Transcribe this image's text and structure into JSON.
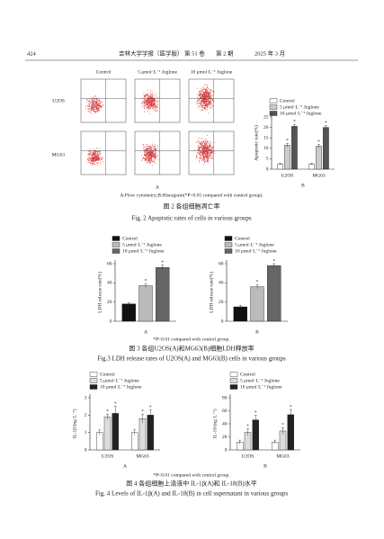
{
  "header": {
    "page": "424",
    "journal": "吉林大学学报（医学版）",
    "volume": "第 51 卷",
    "issue": "第 2 期",
    "date": "2025 年 3 月"
  },
  "figure2": {
    "columns": [
      "Control",
      "5 μmol·L⁻¹ Juglone",
      "10 μmol·L⁻¹ Juglone"
    ],
    "rows": [
      "U2OS",
      "MG63"
    ],
    "panel_a": "A",
    "note": "A:Flow cytometry;B:Histogram(*P<0.05 compared with control group).",
    "caption_cn": "图 2  各组细胞凋亡率",
    "caption_en": "Fig. 2  Apoptotic rates of cells in various groups"
  },
  "figure3": {
    "note": "*P<0.01 compared with control group.",
    "caption_cn": "图 3  各组U2OS(A)和MG63(B)细胞LDH释放率",
    "caption_en": "Fig.3  LDH release rates of U2OS(A) and MG63(B) cells in various groups"
  },
  "figure4": {
    "note": "*P<0.01 compared with control group.",
    "caption_cn": "图 4  各组细胞上清液中 IL-1β(A)和 IL-18(B)水平",
    "caption_en": "Fig. 4  Levels of IL-1β(A) and IL-18(B) in cell supernatant in various groups"
  },
  "chart_data": [
    {
      "type": "bar",
      "panel": "B",
      "ylabel": "Apoptotic rate(%)",
      "categories": [
        "U2OS",
        "MG63"
      ],
      "ylim": [
        0,
        25
      ],
      "yticks": [
        0,
        5,
        10,
        15,
        20,
        25
      ],
      "series": [
        {
          "name": "Control",
          "color": "#ffffff",
          "values": [
            2.5,
            2.5
          ],
          "errors": [
            0.4,
            0.4
          ]
        },
        {
          "name": "5 μmol·L⁻¹ Juglone",
          "color": "#cccccc",
          "values": [
            11.5,
            11
          ],
          "errors": [
            0.8,
            0.8
          ],
          "marker": "*"
        },
        {
          "name": "10 μmol·L⁻¹ Juglone",
          "color": "#555555",
          "values": [
            20.5,
            20
          ],
          "errors": [
            1,
            0.8
          ],
          "marker": "*"
        }
      ]
    },
    {
      "type": "bar",
      "panel": "A",
      "ylabel": "LDH release rate(%)",
      "categories": [
        null
      ],
      "ylim": [
        0,
        60
      ],
      "yticks": [
        0,
        20,
        40,
        60
      ],
      "series": [
        {
          "name": "Control",
          "color": "#111111",
          "values": [
            18
          ],
          "errors": [
            1.5
          ]
        },
        {
          "name": "5 μmol·L⁻¹ Juglone",
          "color": "#bbbbbb",
          "values": [
            37
          ],
          "errors": [
            2
          ],
          "marker": "*"
        },
        {
          "name": "10 μmol·L⁻¹ Juglone",
          "color": "#666666",
          "values": [
            56
          ],
          "errors": [
            2.5
          ],
          "marker": "*"
        }
      ]
    },
    {
      "type": "bar",
      "panel": "B",
      "ylabel": "LDH release rate(%)",
      "categories": [
        null
      ],
      "ylim": [
        0,
        60
      ],
      "yticks": [
        0,
        20,
        40,
        60
      ],
      "series": [
        {
          "name": "Control",
          "color": "#111111",
          "values": [
            15
          ],
          "errors": [
            1.5
          ]
        },
        {
          "name": "5 μmol·L⁻¹ Juglone",
          "color": "#bbbbbb",
          "values": [
            36
          ],
          "errors": [
            2
          ],
          "marker": "*"
        },
        {
          "name": "10 μmol·L⁻¹ Juglone",
          "color": "#666666",
          "values": [
            58
          ],
          "errors": [
            2
          ],
          "marker": "*"
        }
      ]
    },
    {
      "type": "bar",
      "panel": "A",
      "ylabel": "IL-1β/(ng·L⁻¹)",
      "categories": [
        "U2OS",
        "MG63"
      ],
      "ylim": [
        0,
        3
      ],
      "yticks": [
        0,
        1,
        2,
        3
      ],
      "series": [
        {
          "name": "Control",
          "color": "#ffffff",
          "values": [
            1.0,
            1.0
          ],
          "errors": [
            0.15,
            0.15
          ]
        },
        {
          "name": "5 μmol·L⁻¹ Juglone",
          "color": "#dddddd",
          "values": [
            1.9,
            1.8
          ],
          "errors": [
            0.15,
            0.25
          ],
          "marker": "*"
        },
        {
          "name": "10 μmol·L⁻¹ Juglone",
          "color": "#222222",
          "values": [
            2.1,
            2.0
          ],
          "errors": [
            0.4,
            0.3
          ],
          "marker": "*"
        }
      ]
    },
    {
      "type": "bar",
      "panel": "B",
      "ylabel": "IL-18/(ng·L⁻¹)",
      "categories": [
        "U2OS",
        "MG63"
      ],
      "ylim": [
        0,
        80
      ],
      "yticks": [
        0,
        20,
        40,
        60,
        80
      ],
      "series": [
        {
          "name": "Control",
          "color": "#ffffff",
          "values": [
            12,
            12
          ],
          "errors": [
            3,
            3
          ]
        },
        {
          "name": "5 μmol·L⁻¹ Juglone",
          "color": "#dddddd",
          "values": [
            27,
            29
          ],
          "errors": [
            5,
            5
          ],
          "marker": "*"
        },
        {
          "name": "10 μmol·L⁻¹ Juglone",
          "color": "#222222",
          "values": [
            46,
            54
          ],
          "errors": [
            7,
            8
          ],
          "marker": "*"
        }
      ]
    }
  ]
}
